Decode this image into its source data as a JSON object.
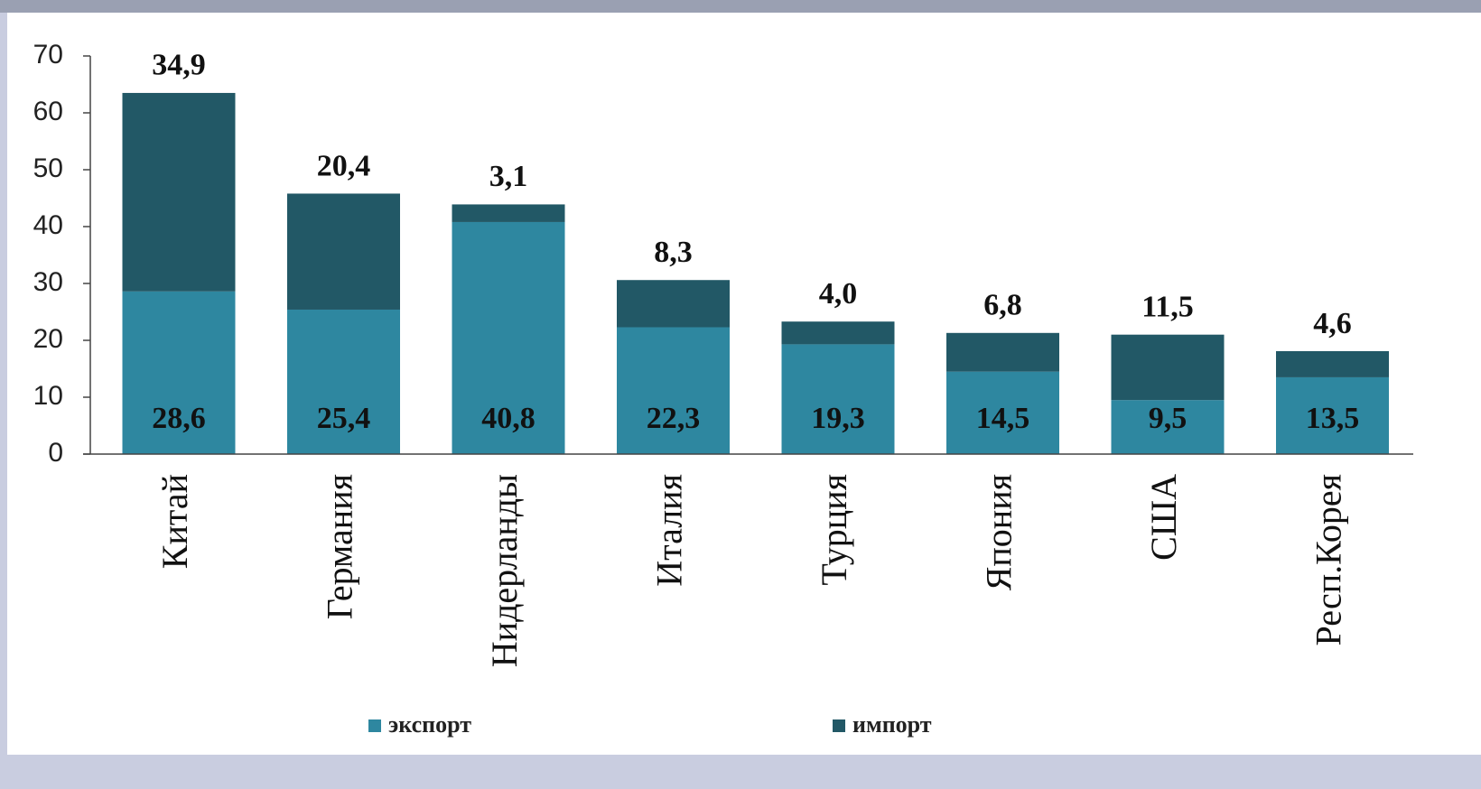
{
  "chart_data": {
    "type": "stacked-bar",
    "categories": [
      "Китай",
      "Германия",
      "Нидерланды",
      "Италия",
      "Турция",
      "Япония",
      "США",
      "Респ.Корея"
    ],
    "series": [
      {
        "name": "экспорт",
        "color": "#2e87a0",
        "values": [
          28.6,
          25.4,
          40.8,
          22.3,
          19.3,
          14.5,
          9.5,
          13.5
        ],
        "value_labels": [
          "28,6",
          "25,4",
          "40,8",
          "22,3",
          "19,3",
          "14,5",
          "9,5",
          "13,5"
        ]
      },
      {
        "name": "импорт",
        "color": "#225866",
        "values": [
          34.9,
          20.4,
          3.1,
          8.3,
          4.0,
          6.8,
          11.5,
          4.6
        ],
        "value_labels": [
          "34,9",
          "20,4",
          "3,1",
          "8,3",
          "4,0",
          "6,8",
          "11,5",
          "4,6"
        ]
      }
    ],
    "ylim": [
      0,
      70
    ],
    "yticks": [
      0,
      10,
      20,
      30,
      40,
      50,
      60,
      70
    ]
  }
}
